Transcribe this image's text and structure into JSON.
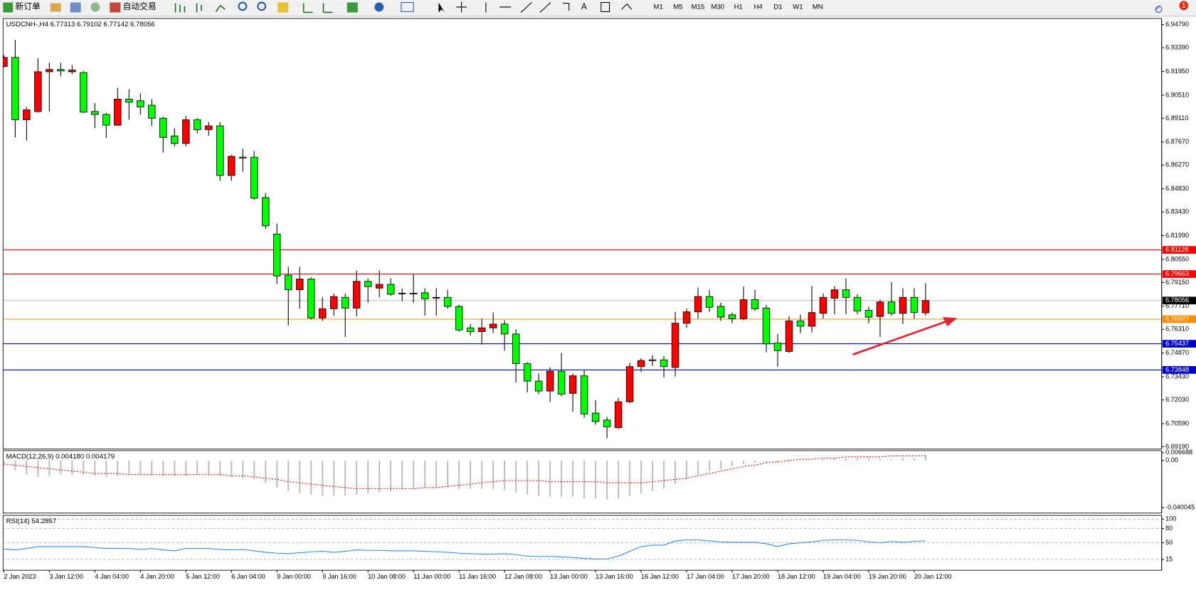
{
  "toolbar": {
    "new_order": "新订单",
    "auto_trading": "自动交易",
    "timeframes": [
      "M1",
      "M5",
      "M15",
      "M30",
      "H1",
      "H4",
      "D1",
      "W1",
      "MN"
    ],
    "badge": "1"
  },
  "chart_data": [
    {
      "type": "candlestick",
      "title": "USDCNH-,H4  6.77313 6.79102 6.77142 6.78056",
      "categories": [
        "2 Jan 2023",
        null,
        null,
        null,
        "3 Jan 12:00",
        null,
        null,
        null,
        "4 Jan 04:00",
        null,
        null,
        null,
        "4 Jan 20:00",
        null,
        null,
        null,
        "5 Jan 12:00",
        null,
        null,
        null,
        "6 Jan 04:00",
        null,
        null,
        null,
        "9 Jan 00:00",
        null,
        null,
        null,
        "9 Jan 16:00",
        null,
        null,
        null,
        "10 Jan 08:00",
        null,
        null,
        null,
        "11 Jan 00:00",
        null,
        null,
        null,
        "11 Jan 16:00",
        null,
        null,
        null,
        "12 Jan 08:00",
        null,
        null,
        null,
        "13 Jan 00:00",
        null,
        null,
        null,
        "13 Jan 16:00",
        null,
        null,
        null,
        "16 Jan 12:00",
        null,
        null,
        null,
        "17 Jan 04:00",
        null,
        null,
        null,
        "17 Jan 20:00",
        null,
        null,
        null,
        "18 Jan 12:00",
        null,
        null,
        null,
        "19 Jan 04:00",
        null,
        null,
        null,
        "19 Jan 20:00",
        null,
        null,
        null,
        "20 Jan 12:00",
        null
      ],
      "open": [
        6.9225,
        6.928,
        6.8902,
        6.8952,
        6.9193,
        6.9207,
        6.9193,
        6.9188,
        6.8952,
        6.8934,
        6.8869,
        6.9027,
        6.9017,
        6.899,
        6.8911,
        6.8804,
        6.8758,
        6.8902,
        6.8842,
        6.8865,
        6.8564,
        6.8675,
        6.8675,
        6.843,
        6.8209,
        6.7959,
        6.7871,
        6.7936,
        6.77,
        6.7756,
        6.7825,
        6.776,
        6.7922,
        6.7881,
        6.7904,
        6.785,
        6.785,
        6.7853,
        6.782,
        6.7825,
        6.777,
        6.764,
        6.7617,
        6.764,
        6.7663,
        6.7603,
        6.7423,
        6.7317,
        6.7257,
        6.7377,
        6.7243,
        6.7349,
        6.7123,
        6.7081,
        6.7035,
        6.7192,
        6.7405,
        6.7446,
        6.7446,
        6.74,
        6.7668,
        6.7737,
        6.783,
        6.777,
        6.7719,
        6.7696,
        6.7811,
        6.776,
        6.7548,
        6.7497,
        6.7682,
        6.765,
        6.7728,
        6.782,
        6.7871,
        6.7825,
        6.7746,
        6.7709,
        6.7797,
        6.7728,
        6.7825,
        6.77313
      ],
      "high": [
        6.9294,
        6.9387,
        6.898,
        6.9276,
        6.9248,
        6.9248,
        6.9234,
        6.9197,
        6.9003,
        6.8943,
        6.9096,
        6.9087,
        6.9063,
        6.9027,
        6.892,
        6.8851,
        6.8925,
        6.8911,
        6.8888,
        6.8888,
        6.8689,
        6.8726,
        6.8712,
        6.8458,
        6.8273,
        6.801,
        6.801,
        6.7945,
        6.7825,
        6.7848,
        6.7848,
        6.7987,
        6.7941,
        6.7987,
        6.7941,
        6.788,
        6.7964,
        6.788,
        6.788,
        6.7871,
        6.7779,
        6.7663,
        6.7696,
        6.7733,
        6.7686,
        6.7631,
        6.7432,
        6.7363,
        6.74,
        6.7488,
        6.7363,
        6.7386,
        6.7201,
        6.71,
        6.7215,
        6.7428,
        6.7456,
        6.7474,
        6.7469,
        6.7737,
        6.7756,
        6.7885,
        6.7871,
        6.7793,
        6.7733,
        6.789,
        6.7871,
        6.7779,
        6.7603,
        6.771,
        6.7719,
        6.7894,
        6.7848,
        6.7894,
        6.794,
        6.7844,
        6.7769,
        6.7811,
        6.7917,
        6.788,
        6.788,
        6.79102
      ],
      "low": [
        6.922,
        6.8795,
        6.8777,
        6.8945,
        6.8952,
        6.9165,
        6.9179,
        6.8943,
        6.8851,
        6.8791,
        6.8865,
        6.8902,
        6.8934,
        6.8865,
        6.8703,
        6.874,
        6.874,
        6.8819,
        6.8805,
        6.8532,
        6.8532,
        6.8587,
        6.8417,
        6.8241,
        6.7908,
        6.7654,
        6.7756,
        6.7691,
        6.7682,
        6.7714,
        6.7585,
        6.771,
        6.7793,
        6.7825,
        6.7834,
        6.7802,
        6.7793,
        6.7714,
        6.7714,
        6.7756,
        6.7617,
        6.7594,
        6.7539,
        6.7608,
        6.7502,
        6.7308,
        6.7248,
        6.7238,
        6.7192,
        6.7225,
        6.7132,
        6.7095,
        6.7053,
        6.697,
        6.7026,
        6.7183,
        6.7372,
        6.7409,
        6.734,
        6.7345,
        6.764,
        6.7696,
        6.7737,
        6.7682,
        6.7668,
        6.7686,
        6.7742,
        6.7492,
        6.7405,
        6.7488,
        6.7608,
        6.7612,
        6.7696,
        6.7723,
        6.7723,
        6.7723,
        6.7668,
        6.7585,
        6.7714,
        6.7663,
        6.7696,
        6.77142
      ],
      "close": [
        6.928,
        6.8902,
        6.8962,
        6.9193,
        6.9207,
        6.9198,
        6.9203,
        6.8948,
        6.8934,
        6.8869,
        6.9027,
        6.9008,
        6.898,
        6.8911,
        6.8795,
        6.8758,
        6.8902,
        6.8842,
        6.8865,
        6.8564,
        6.868,
        6.867,
        6.8426,
        6.8259,
        6.7955,
        6.7871,
        6.7936,
        6.77,
        6.7756,
        6.783,
        6.776,
        6.7922,
        6.789,
        6.7904,
        6.7844,
        6.7846,
        6.7848,
        6.7816,
        6.7825,
        6.777,
        6.7627,
        6.7617,
        6.764,
        6.7663,
        6.7603,
        6.7423,
        6.7317,
        6.7257,
        6.7377,
        6.7238,
        6.7349,
        6.7118,
        6.7072,
        6.704,
        6.7192,
        6.7405,
        6.7442,
        6.7444,
        6.7405,
        6.7668,
        6.7737,
        6.783,
        6.7765,
        6.7705,
        6.7696,
        6.7811,
        6.7756,
        6.7543,
        6.7502,
        6.7682,
        6.765,
        6.7733,
        6.7825,
        6.7871,
        6.7825,
        6.7742,
        6.7705,
        6.7797,
        6.7728,
        6.7825,
        6.7733,
        6.78056
      ],
      "up_color": "#ff0000",
      "down_color": "#00ff00",
      "ylim": [
        6.6905,
        6.9516
      ],
      "yticks": [
        {
          "value": 6.9479,
          "label": "6.94790"
        },
        {
          "value": 6.9339,
          "label": "6.93390"
        },
        {
          "value": 6.9195,
          "label": "6.91950"
        },
        {
          "value": 6.9051,
          "label": "6.90510"
        },
        {
          "value": 6.8911,
          "label": "6.89110"
        },
        {
          "value": 6.8767,
          "label": "6.87670"
        },
        {
          "value": 6.8627,
          "label": "6.86270"
        },
        {
          "value": 6.8483,
          "label": "6.84830"
        },
        {
          "value": 6.8343,
          "label": "6.83430"
        },
        {
          "value": 6.8199,
          "label": "6.81990"
        },
        {
          "value": 6.8055,
          "label": "6.80550"
        },
        {
          "value": 6.7915,
          "label": "6.79150"
        },
        {
          "value": 6.7771,
          "label": "6.77710"
        },
        {
          "value": 6.7631,
          "label": "6.76310"
        },
        {
          "value": 6.7487,
          "label": "6.74870"
        },
        {
          "value": 6.7343,
          "label": "6.73430"
        },
        {
          "value": 6.7203,
          "label": "6.72030"
        },
        {
          "value": 6.7059,
          "label": "6.70590"
        },
        {
          "value": 6.6919,
          "label": "6.69190"
        }
      ],
      "levels": [
        {
          "value": 6.81128,
          "color": "#ff0000"
        },
        {
          "value": 6.79663,
          "color": "#ff0000"
        },
        {
          "value": 6.78056,
          "color": "#c0c0c0",
          "label_bg": "#000000"
        },
        {
          "value": 6.76927,
          "color": "#ff8c00"
        },
        {
          "value": 6.75437,
          "color": "#0000cd"
        },
        {
          "value": 6.73848,
          "color": "#0000cd"
        }
      ]
    },
    {
      "type": "macd",
      "title": "MACD(12,26,9) 0.004180 0.004179",
      "values": [
        -0.005,
        -0.008,
        -0.012,
        -0.014,
        -0.013,
        -0.012,
        -0.012,
        -0.012,
        -0.013,
        -0.014,
        -0.013,
        -0.012,
        -0.012,
        -0.012,
        -0.013,
        -0.013,
        -0.013,
        -0.012,
        -0.012,
        -0.013,
        -0.014,
        -0.015,
        -0.016,
        -0.019,
        -0.023,
        -0.026,
        -0.028,
        -0.029,
        -0.03,
        -0.03,
        -0.03,
        -0.029,
        -0.028,
        -0.027,
        -0.026,
        -0.025,
        -0.024,
        -0.023,
        -0.023,
        -0.023,
        -0.024,
        -0.024,
        -0.024,
        -0.024,
        -0.025,
        -0.027,
        -0.029,
        -0.03,
        -0.031,
        -0.031,
        -0.031,
        -0.032,
        -0.032,
        -0.033,
        -0.032,
        -0.03,
        -0.028,
        -0.026,
        -0.024,
        -0.02,
        -0.016,
        -0.012,
        -0.009,
        -0.007,
        -0.005,
        -0.003,
        -0.002,
        -0.002,
        -0.002,
        -0.001,
        0.0,
        0.0,
        0.001,
        0.002,
        0.002,
        0.002,
        0.002,
        0.001,
        0.001,
        0.002,
        0.002,
        0.00418
      ],
      "signal": [
        -0.003,
        -0.004,
        -0.005,
        -0.006,
        -0.007,
        -0.008,
        -0.009,
        -0.01,
        -0.011,
        -0.011,
        -0.011,
        -0.012,
        -0.012,
        -0.012,
        -0.012,
        -0.012,
        -0.012,
        -0.012,
        -0.012,
        -0.012,
        -0.013,
        -0.013,
        -0.014,
        -0.015,
        -0.016,
        -0.018,
        -0.019,
        -0.02,
        -0.021,
        -0.022,
        -0.023,
        -0.024,
        -0.024,
        -0.024,
        -0.024,
        -0.024,
        -0.024,
        -0.023,
        -0.023,
        -0.022,
        -0.021,
        -0.02,
        -0.019,
        -0.018,
        -0.017,
        -0.017,
        -0.017,
        -0.017,
        -0.018,
        -0.018,
        -0.018,
        -0.018,
        -0.018,
        -0.019,
        -0.019,
        -0.019,
        -0.019,
        -0.018,
        -0.017,
        -0.016,
        -0.015,
        -0.013,
        -0.011,
        -0.009,
        -0.007,
        -0.005,
        -0.004,
        -0.002,
        -0.001,
        0.0,
        0.001,
        0.001,
        0.002,
        0.002,
        0.003,
        0.003,
        0.003,
        0.003,
        0.004,
        0.004,
        0.004,
        0.004179
      ],
      "color": "#c0c0c0",
      "signal_color": "#ff0000",
      "ylim": [
        -0.0446,
        0.0084
      ],
      "yticks": [
        0.006688,
        {
          "value": 0,
          "label": "0.00"
        },
        -0.040045
      ]
    },
    {
      "type": "line",
      "title": "RSI(14) 54.2857",
      "values": [
        37,
        35,
        38,
        42,
        42,
        42,
        42,
        42,
        40,
        38,
        38,
        38,
        36,
        38,
        35,
        33,
        38,
        38,
        38,
        36,
        35,
        36,
        33,
        30,
        28,
        27,
        29,
        31,
        32,
        30,
        32,
        35,
        34,
        34,
        33,
        33,
        33,
        32,
        31,
        30,
        28,
        27,
        26,
        26,
        27,
        25,
        22,
        21,
        21,
        20,
        19,
        17,
        16,
        16,
        22,
        32,
        42,
        45,
        45,
        54,
        56,
        56,
        54,
        52,
        51,
        51,
        51,
        48,
        42,
        48,
        50,
        52,
        55,
        56,
        56,
        55,
        52,
        50,
        53,
        51,
        53,
        54.2857
      ],
      "color": "#1e90ff",
      "ylim": [
        -8,
        108
      ],
      "yticks": [
        100,
        80,
        50,
        15
      ],
      "grid": "dashed"
    }
  ]
}
